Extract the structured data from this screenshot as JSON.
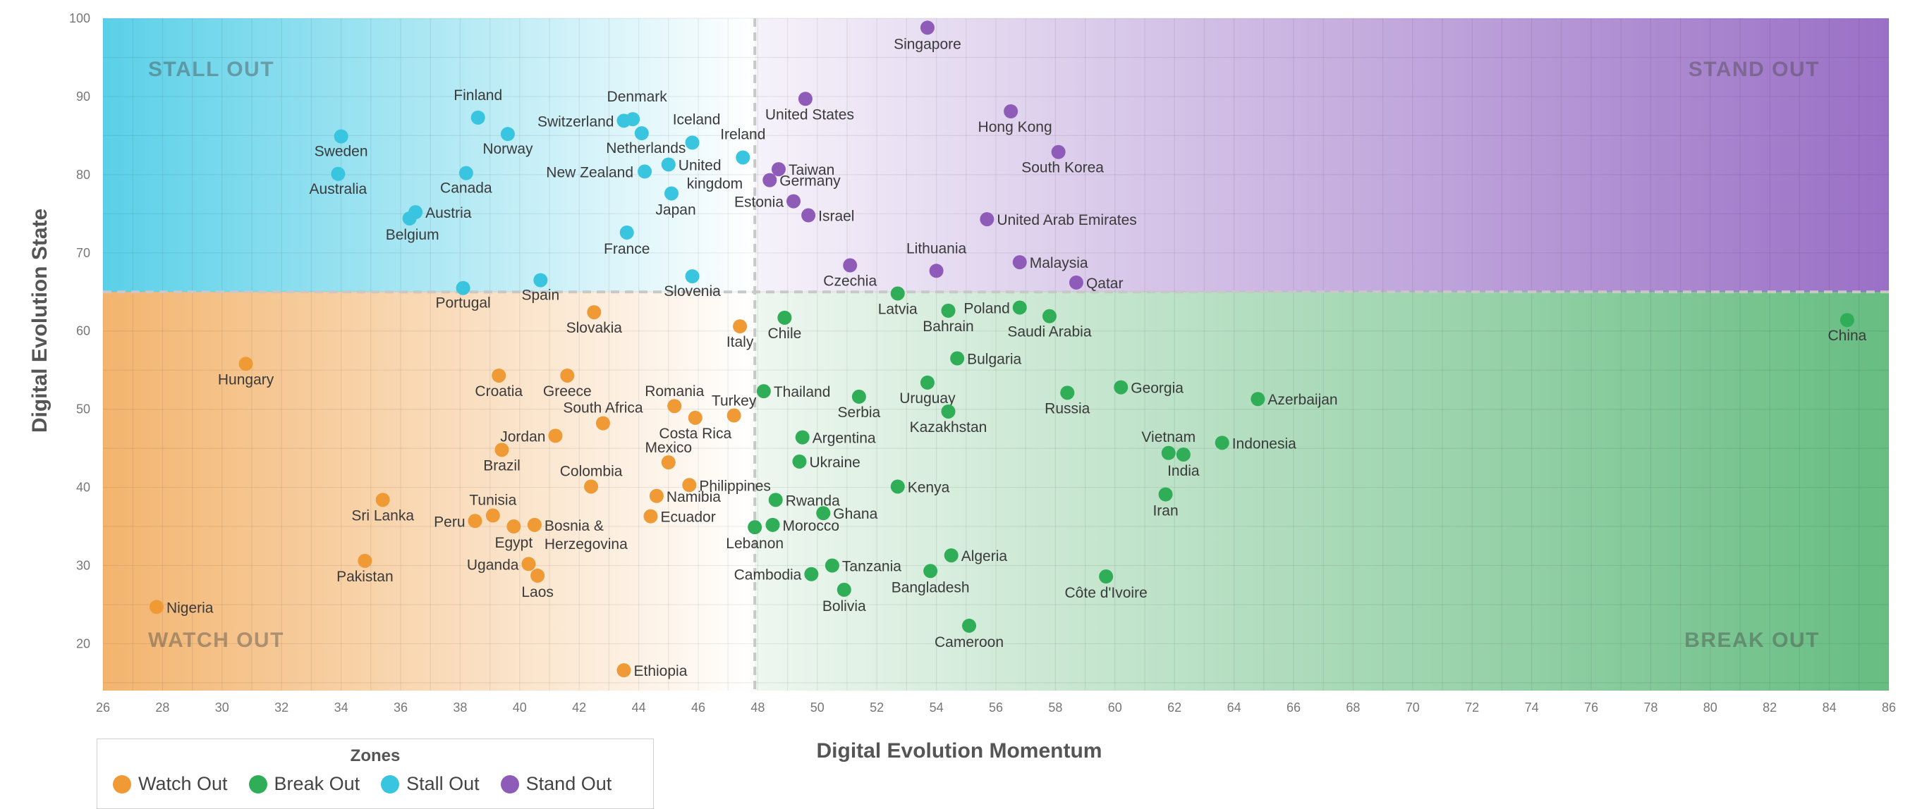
{
  "colors": {
    "watch": "#ef9a35",
    "break": "#2fad57",
    "stall": "#39c5e0",
    "stand": "#8e5cb8"
  },
  "legend": {
    "title": "Zones",
    "items": [
      {
        "label": "Watch Out",
        "zone": "watch"
      },
      {
        "label": "Break Out",
        "zone": "break"
      },
      {
        "label": "Stall Out",
        "zone": "stall"
      },
      {
        "label": "Stand Out",
        "zone": "stand"
      }
    ]
  },
  "chart_data": {
    "type": "scatter",
    "xlabel": "Digital Evolution Momentum",
    "ylabel": "Digital Evolution State",
    "xlim": [
      26,
      86
    ],
    "ylim": [
      14,
      100
    ],
    "xticks": [
      26,
      28,
      30,
      32,
      34,
      36,
      38,
      40,
      42,
      44,
      46,
      48,
      50,
      52,
      54,
      56,
      58,
      60,
      62,
      64,
      66,
      68,
      70,
      72,
      74,
      76,
      78,
      80,
      82,
      84,
      86
    ],
    "yticks": [
      20,
      30,
      40,
      50,
      60,
      70,
      80,
      90,
      100
    ],
    "divider_x": 47.9,
    "divider_y": 65.0,
    "grid": true,
    "legend_position": "bottom-left",
    "zone_labels": {
      "stall": "STALL OUT",
      "stand": "STAND OUT",
      "watch": "WATCH OUT",
      "break": "BREAK OUT"
    },
    "points": [
      {
        "name": "Sweden",
        "x": 34.0,
        "y": 84.9,
        "zone": "stall"
      },
      {
        "name": "Australia",
        "x": 33.9,
        "y": 80.1,
        "zone": "stall"
      },
      {
        "name": "Finland",
        "x": 38.6,
        "y": 87.3,
        "zone": "stall"
      },
      {
        "name": "Norway",
        "x": 39.6,
        "y": 85.2,
        "zone": "stall"
      },
      {
        "name": "Canada",
        "x": 38.2,
        "y": 80.2,
        "zone": "stall"
      },
      {
        "name": "Austria",
        "x": 36.5,
        "y": 75.2,
        "zone": "stall"
      },
      {
        "name": "Belgium",
        "x": 36.3,
        "y": 74.4,
        "zone": "stall"
      },
      {
        "name": "Switzerland",
        "x": 43.5,
        "y": 86.9,
        "zone": "stall"
      },
      {
        "name": "Denmark",
        "x": 43.8,
        "y": 87.1,
        "zone": "stall"
      },
      {
        "name": "Netherlands",
        "x": 44.1,
        "y": 85.3,
        "zone": "stall"
      },
      {
        "name": "Iceland",
        "x": 45.8,
        "y": 84.1,
        "zone": "stall"
      },
      {
        "name": "Ireland",
        "x": 47.5,
        "y": 82.2,
        "zone": "stall"
      },
      {
        "name": "New Zealand",
        "x": 44.2,
        "y": 80.4,
        "zone": "stall"
      },
      {
        "name": "United kingdom",
        "x": 45.0,
        "y": 81.3,
        "zone": "stall"
      },
      {
        "name": "Japan",
        "x": 45.1,
        "y": 77.6,
        "zone": "stall"
      },
      {
        "name": "France",
        "x": 43.6,
        "y": 72.6,
        "zone": "stall"
      },
      {
        "name": "Portugal",
        "x": 38.1,
        "y": 65.5,
        "zone": "stall"
      },
      {
        "name": "Spain",
        "x": 40.7,
        "y": 66.5,
        "zone": "stall"
      },
      {
        "name": "Slovenia",
        "x": 45.8,
        "y": 67.0,
        "zone": "stall"
      },
      {
        "name": "Singapore",
        "x": 53.7,
        "y": 98.8,
        "zone": "stand"
      },
      {
        "name": "United States",
        "x": 49.6,
        "y": 89.7,
        "zone": "stand"
      },
      {
        "name": "Hong Kong",
        "x": 56.5,
        "y": 88.1,
        "zone": "stand"
      },
      {
        "name": "South Korea",
        "x": 58.1,
        "y": 82.9,
        "zone": "stand"
      },
      {
        "name": "Taiwan",
        "x": 48.7,
        "y": 80.7,
        "zone": "stand"
      },
      {
        "name": "Germany",
        "x": 48.4,
        "y": 79.3,
        "zone": "stand"
      },
      {
        "name": "Estonia",
        "x": 49.2,
        "y": 76.6,
        "zone": "stand"
      },
      {
        "name": "Israel",
        "x": 49.7,
        "y": 74.8,
        "zone": "stand"
      },
      {
        "name": "United Arab Emirates",
        "x": 55.7,
        "y": 74.3,
        "zone": "stand"
      },
      {
        "name": "Czechia",
        "x": 51.1,
        "y": 68.4,
        "zone": "stand"
      },
      {
        "name": "Lithuania",
        "x": 54.0,
        "y": 67.7,
        "zone": "stand"
      },
      {
        "name": "Malaysia",
        "x": 56.8,
        "y": 68.8,
        "zone": "stand"
      },
      {
        "name": "Qatar",
        "x": 58.7,
        "y": 66.2,
        "zone": "stand"
      },
      {
        "name": "Latvia",
        "x": 52.7,
        "y": 64.8,
        "zone": "break"
      },
      {
        "name": "Bahrain",
        "x": 54.4,
        "y": 62.6,
        "zone": "break"
      },
      {
        "name": "Poland",
        "x": 56.8,
        "y": 63.0,
        "zone": "break"
      },
      {
        "name": "Saudi Arabia",
        "x": 57.8,
        "y": 61.9,
        "zone": "break"
      },
      {
        "name": "Chile",
        "x": 48.9,
        "y": 61.7,
        "zone": "break"
      },
      {
        "name": "China",
        "x": 84.6,
        "y": 61.4,
        "zone": "break"
      },
      {
        "name": "Bulgaria",
        "x": 54.7,
        "y": 56.5,
        "zone": "break"
      },
      {
        "name": "Thailand",
        "x": 48.2,
        "y": 52.3,
        "zone": "break"
      },
      {
        "name": "Uruguay",
        "x": 53.7,
        "y": 53.4,
        "zone": "break"
      },
      {
        "name": "Serbia",
        "x": 51.4,
        "y": 51.6,
        "zone": "break"
      },
      {
        "name": "Russia",
        "x": 58.4,
        "y": 52.1,
        "zone": "break"
      },
      {
        "name": "Georgia",
        "x": 60.2,
        "y": 52.8,
        "zone": "break"
      },
      {
        "name": "Azerbaijan",
        "x": 64.8,
        "y": 51.3,
        "zone": "break"
      },
      {
        "name": "Kazakhstan",
        "x": 54.4,
        "y": 49.7,
        "zone": "break"
      },
      {
        "name": "Argentina",
        "x": 49.5,
        "y": 46.4,
        "zone": "break"
      },
      {
        "name": "Ukraine",
        "x": 49.4,
        "y": 43.3,
        "zone": "break"
      },
      {
        "name": "Vietnam",
        "x": 61.8,
        "y": 44.4,
        "zone": "break"
      },
      {
        "name": "India",
        "x": 62.3,
        "y": 44.2,
        "zone": "break"
      },
      {
        "name": "Indonesia",
        "x": 63.6,
        "y": 45.7,
        "zone": "break"
      },
      {
        "name": "Iran",
        "x": 61.7,
        "y": 39.1,
        "zone": "break"
      },
      {
        "name": "Kenya",
        "x": 52.7,
        "y": 40.1,
        "zone": "break"
      },
      {
        "name": "Rwanda",
        "x": 48.6,
        "y": 38.4,
        "zone": "break"
      },
      {
        "name": "Ghana",
        "x": 50.2,
        "y": 36.7,
        "zone": "break"
      },
      {
        "name": "Morocco",
        "x": 48.5,
        "y": 35.2,
        "zone": "break"
      },
      {
        "name": "Lebanon",
        "x": 47.9,
        "y": 34.9,
        "zone": "break"
      },
      {
        "name": "Algeria",
        "x": 54.5,
        "y": 31.3,
        "zone": "break"
      },
      {
        "name": "Tanzania",
        "x": 50.5,
        "y": 30.0,
        "zone": "break"
      },
      {
        "name": "Cambodia",
        "x": 49.8,
        "y": 28.9,
        "zone": "break"
      },
      {
        "name": "Bangladesh",
        "x": 53.8,
        "y": 29.3,
        "zone": "break"
      },
      {
        "name": "Bolivia",
        "x": 50.9,
        "y": 26.9,
        "zone": "break"
      },
      {
        "name": "Côte d'Ivoire",
        "x": 59.7,
        "y": 28.6,
        "zone": "break"
      },
      {
        "name": "Cameroon",
        "x": 55.1,
        "y": 22.3,
        "zone": "break"
      },
      {
        "name": "Slovakia",
        "x": 42.5,
        "y": 62.4,
        "zone": "watch"
      },
      {
        "name": "Italy",
        "x": 47.4,
        "y": 60.6,
        "zone": "watch"
      },
      {
        "name": "Hungary",
        "x": 30.8,
        "y": 55.8,
        "zone": "watch"
      },
      {
        "name": "Croatia",
        "x": 39.3,
        "y": 54.3,
        "zone": "watch"
      },
      {
        "name": "Greece",
        "x": 41.6,
        "y": 54.3,
        "zone": "watch"
      },
      {
        "name": "Romania",
        "x": 45.2,
        "y": 50.4,
        "zone": "watch"
      },
      {
        "name": "Turkey",
        "x": 47.2,
        "y": 49.2,
        "zone": "watch"
      },
      {
        "name": "Costa Rica",
        "x": 45.9,
        "y": 48.9,
        "zone": "watch"
      },
      {
        "name": "South Africa",
        "x": 42.8,
        "y": 48.2,
        "zone": "watch"
      },
      {
        "name": "Jordan",
        "x": 41.2,
        "y": 46.6,
        "zone": "watch"
      },
      {
        "name": "Brazil",
        "x": 39.4,
        "y": 44.8,
        "zone": "watch"
      },
      {
        "name": "Mexico",
        "x": 45.0,
        "y": 43.2,
        "zone": "watch"
      },
      {
        "name": "Philippines",
        "x": 45.7,
        "y": 40.3,
        "zone": "watch"
      },
      {
        "name": "Colombia",
        "x": 42.4,
        "y": 40.1,
        "zone": "watch"
      },
      {
        "name": "Namibia",
        "x": 44.6,
        "y": 38.9,
        "zone": "watch"
      },
      {
        "name": "Ecuador",
        "x": 44.4,
        "y": 36.3,
        "zone": "watch"
      },
      {
        "name": "Sri Lanka",
        "x": 35.4,
        "y": 38.4,
        "zone": "watch"
      },
      {
        "name": "Tunisia",
        "x": 39.1,
        "y": 36.4,
        "zone": "watch"
      },
      {
        "name": "Peru",
        "x": 38.5,
        "y": 35.7,
        "zone": "watch"
      },
      {
        "name": "Egypt",
        "x": 39.8,
        "y": 35.0,
        "zone": "watch"
      },
      {
        "name": "Bosnia & Herzegovina",
        "x": 40.5,
        "y": 35.2,
        "zone": "watch"
      },
      {
        "name": "Pakistan",
        "x": 34.8,
        "y": 30.6,
        "zone": "watch"
      },
      {
        "name": "Uganda",
        "x": 40.3,
        "y": 30.2,
        "zone": "watch"
      },
      {
        "name": "Laos",
        "x": 40.6,
        "y": 28.7,
        "zone": "watch"
      },
      {
        "name": "Nigeria",
        "x": 27.8,
        "y": 24.7,
        "zone": "watch"
      },
      {
        "name": "Ethiopia",
        "x": 43.5,
        "y": 16.6,
        "zone": "watch"
      }
    ]
  }
}
